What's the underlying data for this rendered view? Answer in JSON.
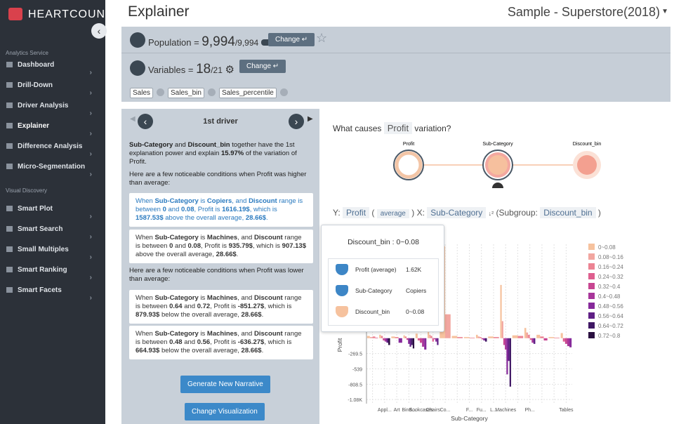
{
  "sidebar": {
    "logo": "HEARTCOUNT",
    "section1": "Analytics Service",
    "items1": [
      "Dashboard",
      "Drill-Down",
      "Driver Analysis",
      "Explainer",
      "Difference Analysis",
      "Micro-Segmentation"
    ],
    "section2": "Visual Discovery",
    "items2": [
      "Smart Plot",
      "Smart Search",
      "Small Multiples",
      "Smart Ranking",
      "Smart Facets"
    ]
  },
  "header": {
    "title": "Explainer",
    "dataset": "Sample - Superstore(2018)"
  },
  "population": {
    "label": "Population",
    "eq": "=",
    "value": "9,994",
    "total": "/9,994",
    "button": "Change"
  },
  "variables": {
    "label": "Variables",
    "eq": "=",
    "value": "18",
    "total": "/21",
    "button": "Change",
    "tags": [
      "Sales",
      "Sales_bin",
      "Sales_percentile"
    ]
  },
  "narrative": {
    "title": "1st driver",
    "summary": [
      {
        "text": "Sub-Category",
        "bold": true
      },
      {
        "text": " and "
      },
      {
        "text": "Discount_bin",
        "bold": true
      },
      {
        "text": " together have the 1st explanation power and explain "
      },
      {
        "text": "15.97%",
        "bold": true
      },
      {
        "text": " of the variation of Profit."
      }
    ],
    "higher_intro": "Here are a few noticeable conditions when Profit was higher than average:",
    "higher": [
      [
        {
          "text": "When "
        },
        {
          "text": "Sub-Category",
          "bold": true
        },
        {
          "text": " is "
        },
        {
          "text": "Copiers",
          "bold": true
        },
        {
          "text": ", and "
        },
        {
          "text": "Discount",
          "bold": true
        },
        {
          "text": " range is between "
        },
        {
          "text": "0",
          "bold": true
        },
        {
          "text": " and "
        },
        {
          "text": "0.08",
          "bold": true
        },
        {
          "text": ", Profit is "
        },
        {
          "text": "1616.19$",
          "bold": true
        },
        {
          "text": ", which is "
        },
        {
          "text": "1587.53$",
          "bold": true
        },
        {
          "text": " above the overall average, "
        },
        {
          "text": "28.66$",
          "bold": true
        },
        {
          "text": "."
        }
      ],
      [
        {
          "text": "When "
        },
        {
          "text": "Sub-Category",
          "bold": true
        },
        {
          "text": " is "
        },
        {
          "text": "Machines",
          "bold": true
        },
        {
          "text": ", and "
        },
        {
          "text": "Discount",
          "bold": true
        },
        {
          "text": " range is between "
        },
        {
          "text": "0",
          "bold": true
        },
        {
          "text": " and "
        },
        {
          "text": "0.08",
          "bold": true
        },
        {
          "text": ", Profit is "
        },
        {
          "text": "935.79$",
          "bold": true
        },
        {
          "text": ", which is "
        },
        {
          "text": "907.13$",
          "bold": true
        },
        {
          "text": " above the overall average, "
        },
        {
          "text": "28.66$",
          "bold": true
        },
        {
          "text": "."
        }
      ]
    ],
    "lower_intro": "Here are a few noticeable conditions when Profit was lower than average:",
    "lower": [
      [
        {
          "text": "When "
        },
        {
          "text": "Sub-Category",
          "bold": true
        },
        {
          "text": " is "
        },
        {
          "text": "Machines",
          "bold": true
        },
        {
          "text": ", and "
        },
        {
          "text": "Discount",
          "bold": true
        },
        {
          "text": " range is between "
        },
        {
          "text": "0.64",
          "bold": true
        },
        {
          "text": " and "
        },
        {
          "text": "0.72",
          "bold": true
        },
        {
          "text": ", Profit is "
        },
        {
          "text": "-851.27$",
          "bold": true
        },
        {
          "text": ", which is "
        },
        {
          "text": "879.93$",
          "bold": true
        },
        {
          "text": " below the overall average, "
        },
        {
          "text": "28.66$",
          "bold": true
        },
        {
          "text": "."
        }
      ],
      [
        {
          "text": "When "
        },
        {
          "text": "Sub-Category",
          "bold": true
        },
        {
          "text": " is "
        },
        {
          "text": "Machines",
          "bold": true
        },
        {
          "text": ", and "
        },
        {
          "text": "Discount",
          "bold": true
        },
        {
          "text": " range is between "
        },
        {
          "text": "0.48",
          "bold": true
        },
        {
          "text": " and "
        },
        {
          "text": "0.56",
          "bold": true
        },
        {
          "text": ", Profit is "
        },
        {
          "text": "-636.27$",
          "bold": true
        },
        {
          "text": ", which is "
        },
        {
          "text": "664.93$",
          "bold": true
        },
        {
          "text": " below the overall average, "
        },
        {
          "text": "28.66$",
          "bold": true
        },
        {
          "text": "."
        }
      ]
    ],
    "button1": "Generate New Narrative",
    "button2": "Change Visualization"
  },
  "graph": {
    "question": [
      "What causes",
      "Profit",
      "variation?"
    ],
    "nodes": [
      "Profit",
      "Sub-Category",
      "Discount_bin"
    ]
  },
  "spec": {
    "y": "Y:",
    "y_var": "Profit",
    "open": "(",
    "agg": "average",
    "close": ")",
    "x": "X:",
    "x_var": "Sub-Category",
    "subgroup": "(Subgroup:",
    "sub_var": "Discount_bin",
    "end": ")"
  },
  "tooltip": {
    "title": "Discount_bin : 0~0.08",
    "rows": [
      [
        "Profit (average)",
        "1.62K"
      ],
      [
        "Sub-Category",
        "Copiers"
      ],
      [
        "Discount_bin",
        "0~0.08"
      ]
    ]
  },
  "chart_data": {
    "type": "bar",
    "x_label": "Sub-Category",
    "y_label": "Profit",
    "categories": [
      null,
      "Appl...",
      "Art",
      "Bind...",
      "Bookcases",
      "Chairs",
      "Co...",
      null,
      "F...",
      "Fu...",
      "L...",
      "Machines",
      null,
      "Ph...",
      null,
      null,
      "Tables"
    ],
    "ylim": [
      -1150,
      1650
    ],
    "yticks": [
      -269.5,
      -539,
      -808.5,
      {
        "value": -1078,
        "label": "-1.08K"
      }
    ],
    "grid": true,
    "series": [
      {
        "name": "0~0.08",
        "color": "#f6c29e",
        "values": [
          40,
          60,
          30,
          50,
          80,
          120,
          1616,
          40,
          20,
          60,
          30,
          936,
          50,
          180,
          60,
          20,
          90
        ]
      },
      {
        "name": "0.08~0.16",
        "color": "#f2a6a0",
        "values": [
          20,
          null,
          null,
          null,
          null,
          60,
          420,
          null,
          null,
          30,
          null,
          300,
          null,
          100,
          null,
          null,
          null
        ]
      },
      {
        "name": "0.16~0.24",
        "color": "#ec8393",
        "values": [
          30,
          40,
          20,
          30,
          null,
          40,
          null,
          20,
          10,
          20,
          20,
          null,
          40,
          60,
          30,
          10,
          null
        ]
      },
      {
        "name": "0.24~0.32",
        "color": "#de5f8f",
        "values": [
          10,
          null,
          null,
          null,
          -40,
          -60,
          null,
          null,
          null,
          null,
          null,
          null,
          null,
          -30,
          null,
          null,
          -60
        ]
      },
      {
        "name": "0.32~0.4",
        "color": "#c74691",
        "values": [
          null,
          -40,
          null,
          -30,
          -80,
          -20,
          null,
          null,
          null,
          -20,
          null,
          -120,
          null,
          null,
          -40,
          null,
          -100
        ]
      },
      {
        "name": "0.4~0.48",
        "color": "#a8369a",
        "values": [
          null,
          -60,
          null,
          null,
          -150,
          null,
          null,
          null,
          null,
          null,
          null,
          -200,
          null,
          -80,
          null,
          null,
          -140
        ]
      },
      {
        "name": "0.48~0.56",
        "color": "#86299a",
        "values": [
          null,
          null,
          -80,
          -100,
          -200,
          -60,
          null,
          null,
          null,
          -40,
          null,
          -636,
          null,
          null,
          null,
          null,
          -160
        ]
      },
      {
        "name": "0.56~0.64",
        "color": "#5f1f85",
        "values": [
          null,
          -80,
          null,
          -150,
          null,
          -120,
          null,
          null,
          null,
          null,
          null,
          -400,
          null,
          -100,
          null,
          null,
          null
        ]
      },
      {
        "name": "0.64~0.72",
        "color": "#3f1764",
        "values": [
          null,
          null,
          null,
          -120,
          null,
          null,
          null,
          null,
          null,
          -60,
          null,
          -851,
          null,
          null,
          null,
          null,
          null
        ]
      },
      {
        "name": "0.72~0.8",
        "color": "#2a1040",
        "values": [
          null,
          -120,
          null,
          -180,
          null,
          null,
          null,
          null,
          null,
          null,
          null,
          null,
          null,
          null,
          null,
          null,
          null
        ]
      }
    ]
  }
}
